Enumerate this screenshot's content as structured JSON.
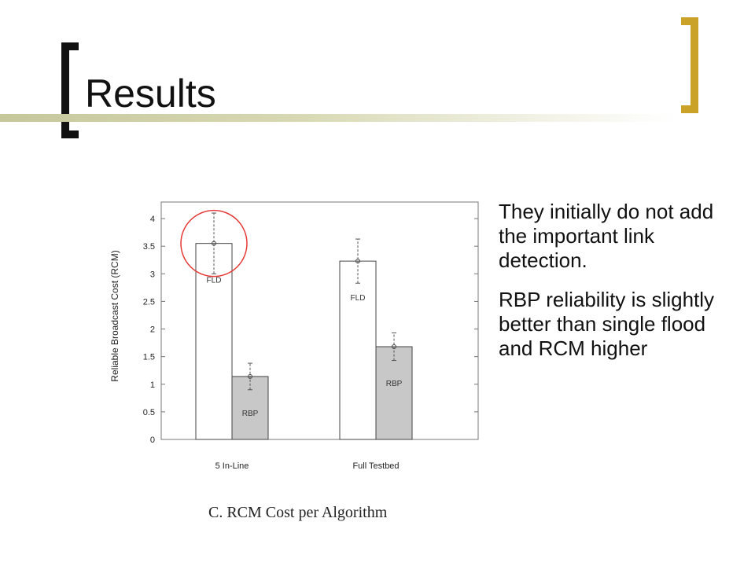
{
  "slide": {
    "title": "Results",
    "bullets": [
      "They initially do not add the important link detection.",
      "RBP reliability is slightly better than single flood and RCM higher"
    ]
  },
  "colors": {
    "title_bracket_left": "#111111",
    "title_bracket_right": "#c9a227",
    "title_rule": "#c6c79b",
    "bar_fld": "#ffffff",
    "bar_rbp": "#c8c8c8",
    "highlight_circle": "#e53935"
  },
  "chart_data": {
    "type": "bar",
    "title": "",
    "caption": "C. RCM Cost per Algorithm",
    "ylabel": "Reliable Broadcast Cost (RCM)",
    "xlabel": "",
    "ylim": [
      0,
      4.3
    ],
    "yticks": [
      "0",
      "0.5",
      "1",
      "1.5",
      "2",
      "2.5",
      "3",
      "3.5",
      "4"
    ],
    "categories": [
      "5 In-Line",
      "Full Testbed"
    ],
    "series": [
      {
        "name": "FLD",
        "values": [
          3.55,
          3.23
        ],
        "err_low": [
          3.0,
          2.83
        ],
        "err_high": [
          4.1,
          3.63
        ]
      },
      {
        "name": "RBP",
        "values": [
          1.14,
          1.68
        ],
        "err_low": [
          0.9,
          1.43
        ],
        "err_high": [
          1.38,
          1.93
        ]
      }
    ],
    "grid": false,
    "legend": "none",
    "annotation": "red circle highlights 5 In-Line FLD bar top"
  }
}
